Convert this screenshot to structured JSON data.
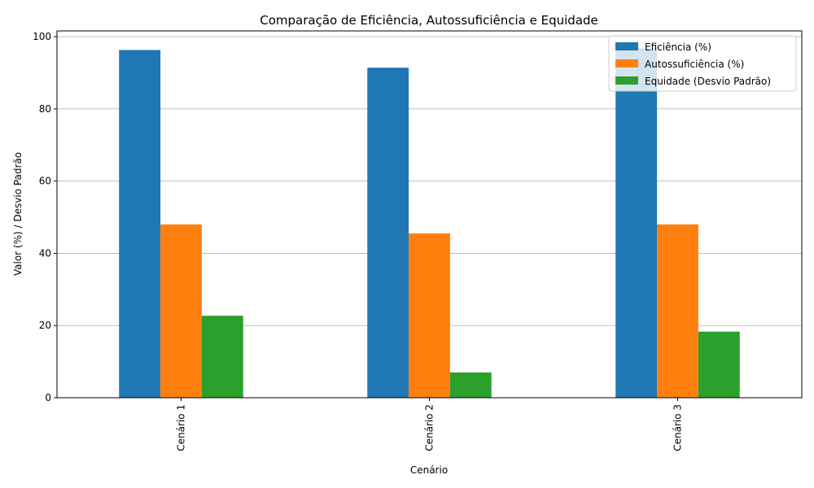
{
  "chart_data": {
    "type": "bar",
    "title": "Comparação de Eficiência, Autossuficiência e Equidade",
    "xlabel": "Cenário",
    "ylabel": "Valor (%) / Desvio Padrão",
    "categories": [
      "Cenário 1",
      "Cenário 2",
      "Cenário 3"
    ],
    "series": [
      {
        "name": "Eficiência (%)",
        "color": "#1f77b4",
        "values": [
          96.3,
          91.4,
          96.8
        ]
      },
      {
        "name": "Autossuficiência (%)",
        "color": "#ff7f0e",
        "values": [
          48.0,
          45.5,
          48.0
        ]
      },
      {
        "name": "Equidade (Desvio Padrão)",
        "color": "#2ca02c",
        "values": [
          22.7,
          7.0,
          18.3
        ]
      }
    ],
    "ylim": [
      0,
      101.6
    ],
    "yticks": [
      0,
      20,
      40,
      60,
      80,
      100
    ],
    "grid": "y",
    "legend_position": "top-right"
  }
}
